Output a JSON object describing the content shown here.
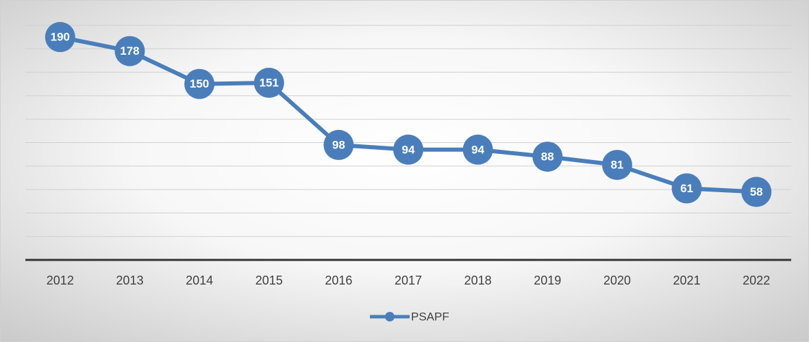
{
  "chart_data": {
    "type": "line",
    "categories": [
      "2012",
      "2013",
      "2014",
      "2015",
      "2016",
      "2017",
      "2018",
      "2019",
      "2020",
      "2021",
      "2022"
    ],
    "series": [
      {
        "name": "PSAPF",
        "color": "#4a7ebb",
        "values": [
          190,
          178,
          150,
          151,
          98,
          94,
          94,
          88,
          81,
          61,
          58
        ]
      }
    ],
    "ylim": [
      0,
      200
    ],
    "yticks": [
      0,
      20,
      40,
      60,
      80,
      100,
      120,
      140,
      160,
      180,
      200
    ],
    "grid": true,
    "legend": "bottom",
    "data_labels": true
  }
}
